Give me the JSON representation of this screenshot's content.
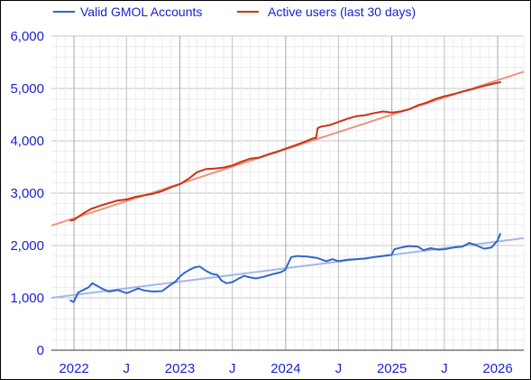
{
  "colors": {
    "accounts": "#3366cc",
    "accounts_trend": "#a3b8e6",
    "active": "#cc3311",
    "active_trend": "#eb9580",
    "axis_text": "#1a1fd0",
    "grid": "#d9d9d9",
    "grid_major": "#c4c4c4"
  },
  "chart_data": {
    "type": "line",
    "title": "",
    "xlabel": "",
    "ylabel": "",
    "legend_position": "top-left",
    "grid": true,
    "xlim": [
      "2021-10-15",
      "2026-04-01"
    ],
    "ylim": [
      0,
      6000
    ],
    "y_ticks": [
      "0",
      "1,000",
      "2,000",
      "3,000",
      "4,000",
      "5,000",
      "6,000"
    ],
    "x_ticks": [
      {
        "date": "2022-01-01",
        "label": "2022"
      },
      {
        "date": "2022-07-01",
        "label": "J"
      },
      {
        "date": "2023-01-01",
        "label": "2023"
      },
      {
        "date": "2023-07-01",
        "label": "J"
      },
      {
        "date": "2024-01-01",
        "label": "2024"
      },
      {
        "date": "2024-07-01",
        "label": "J"
      },
      {
        "date": "2025-01-01",
        "label": "2025"
      },
      {
        "date": "2025-07-01",
        "label": "J"
      },
      {
        "date": "2026-01-01",
        "label": "2026"
      }
    ],
    "series": [
      {
        "name": "Valid GMOL Accounts",
        "color": "#3366cc",
        "points": [
          [
            "2021-12-20",
            950
          ],
          [
            "2021-12-31",
            920
          ],
          [
            "2022-01-15",
            1100
          ],
          [
            "2022-02-01",
            1150
          ],
          [
            "2022-02-20",
            1200
          ],
          [
            "2022-03-05",
            1280
          ],
          [
            "2022-03-25",
            1220
          ],
          [
            "2022-04-10",
            1170
          ],
          [
            "2022-05-01",
            1120
          ],
          [
            "2022-06-01",
            1150
          ],
          [
            "2022-07-01",
            1090
          ],
          [
            "2022-07-20",
            1130
          ],
          [
            "2022-08-10",
            1180
          ],
          [
            "2022-09-01",
            1140
          ],
          [
            "2022-10-01",
            1120
          ],
          [
            "2022-11-01",
            1130
          ],
          [
            "2022-11-25",
            1230
          ],
          [
            "2022-12-15",
            1300
          ],
          [
            "2022-12-31",
            1400
          ],
          [
            "2023-01-15",
            1470
          ],
          [
            "2023-02-01",
            1530
          ],
          [
            "2023-02-20",
            1580
          ],
          [
            "2023-03-10",
            1600
          ],
          [
            "2023-03-31",
            1520
          ],
          [
            "2023-04-20",
            1460
          ],
          [
            "2023-05-10",
            1440
          ],
          [
            "2023-05-25",
            1330
          ],
          [
            "2023-06-10",
            1280
          ],
          [
            "2023-07-01",
            1300
          ],
          [
            "2023-07-20",
            1360
          ],
          [
            "2023-08-10",
            1420
          ],
          [
            "2023-09-01",
            1390
          ],
          [
            "2023-09-20",
            1370
          ],
          [
            "2023-10-15",
            1400
          ],
          [
            "2023-11-15",
            1450
          ],
          [
            "2023-12-15",
            1490
          ],
          [
            "2023-12-31",
            1540
          ],
          [
            "2024-01-10",
            1660
          ],
          [
            "2024-01-20",
            1780
          ],
          [
            "2024-02-10",
            1800
          ],
          [
            "2024-03-15",
            1790
          ],
          [
            "2024-04-20",
            1760
          ],
          [
            "2024-05-20",
            1700
          ],
          [
            "2024-06-10",
            1740
          ],
          [
            "2024-07-01",
            1700
          ],
          [
            "2024-08-01",
            1730
          ],
          [
            "2024-09-01",
            1740
          ],
          [
            "2024-10-01",
            1750
          ],
          [
            "2024-11-01",
            1780
          ],
          [
            "2024-12-01",
            1800
          ],
          [
            "2024-12-31",
            1820
          ],
          [
            "2025-01-10",
            1930
          ],
          [
            "2025-02-01",
            1960
          ],
          [
            "2025-03-01",
            1990
          ],
          [
            "2025-04-01",
            1980
          ],
          [
            "2025-04-20",
            1910
          ],
          [
            "2025-05-15",
            1950
          ],
          [
            "2025-06-10",
            1920
          ],
          [
            "2025-07-01",
            1930
          ],
          [
            "2025-08-01",
            1960
          ],
          [
            "2025-09-01",
            1980
          ],
          [
            "2025-09-25",
            2050
          ],
          [
            "2025-10-20",
            2000
          ],
          [
            "2025-11-15",
            1940
          ],
          [
            "2025-12-10",
            1960
          ],
          [
            "2025-12-31",
            2090
          ],
          [
            "2026-01-10",
            2220
          ]
        ],
        "trend": [
          [
            "2021-10-15",
            1000
          ],
          [
            "2026-04-01",
            2140
          ]
        ]
      },
      {
        "name": "Active users (last 30 days)",
        "color": "#cc3311",
        "points": [
          [
            "2021-12-20",
            2480
          ],
          [
            "2022-01-01",
            2490
          ],
          [
            "2022-02-01",
            2610
          ],
          [
            "2022-03-01",
            2700
          ],
          [
            "2022-04-01",
            2760
          ],
          [
            "2022-05-01",
            2810
          ],
          [
            "2022-06-01",
            2860
          ],
          [
            "2022-07-01",
            2880
          ],
          [
            "2022-08-01",
            2930
          ],
          [
            "2022-09-01",
            2960
          ],
          [
            "2022-10-01",
            2990
          ],
          [
            "2022-11-01",
            3040
          ],
          [
            "2022-12-01",
            3110
          ],
          [
            "2023-01-01",
            3170
          ],
          [
            "2023-02-01",
            3280
          ],
          [
            "2023-03-01",
            3400
          ],
          [
            "2023-04-01",
            3460
          ],
          [
            "2023-05-01",
            3470
          ],
          [
            "2023-06-01",
            3490
          ],
          [
            "2023-07-01",
            3530
          ],
          [
            "2023-08-01",
            3600
          ],
          [
            "2023-09-01",
            3660
          ],
          [
            "2023-10-01",
            3680
          ],
          [
            "2023-11-01",
            3740
          ],
          [
            "2023-12-01",
            3790
          ],
          [
            "2024-01-01",
            3850
          ],
          [
            "2024-02-01",
            3910
          ],
          [
            "2024-03-01",
            3970
          ],
          [
            "2024-04-01",
            4040
          ],
          [
            "2024-04-15",
            4060
          ],
          [
            "2024-04-20",
            4240
          ],
          [
            "2024-05-01",
            4270
          ],
          [
            "2024-06-01",
            4300
          ],
          [
            "2024-07-01",
            4360
          ],
          [
            "2024-08-01",
            4420
          ],
          [
            "2024-09-01",
            4470
          ],
          [
            "2024-10-01",
            4490
          ],
          [
            "2024-11-01",
            4530
          ],
          [
            "2024-12-01",
            4560
          ],
          [
            "2025-01-01",
            4540
          ],
          [
            "2025-02-01",
            4560
          ],
          [
            "2025-03-01",
            4600
          ],
          [
            "2025-04-01",
            4680
          ],
          [
            "2025-05-01",
            4730
          ],
          [
            "2025-06-01",
            4800
          ],
          [
            "2025-07-01",
            4850
          ],
          [
            "2025-08-01",
            4890
          ],
          [
            "2025-09-01",
            4940
          ],
          [
            "2025-10-01",
            4980
          ],
          [
            "2025-11-01",
            5030
          ],
          [
            "2025-12-01",
            5070
          ],
          [
            "2026-01-10",
            5120
          ]
        ],
        "trend": [
          [
            "2021-10-15",
            2380
          ],
          [
            "2026-04-01",
            5320
          ]
        ]
      }
    ]
  }
}
